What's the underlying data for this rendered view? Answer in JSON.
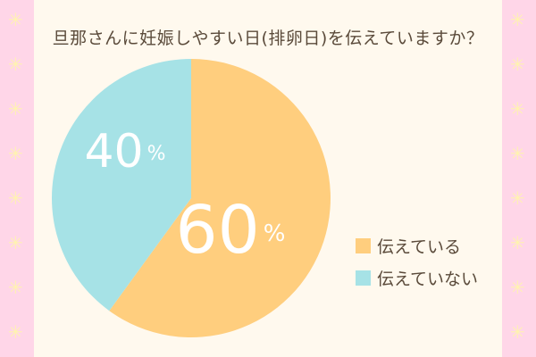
{
  "chart_data": {
    "type": "pie",
    "title": "旦那さんに妊娠しやすい日(排卵日)を伝えていますか？",
    "slices": [
      {
        "label": "伝えている",
        "value": 60,
        "display_value": "60",
        "unit": "%",
        "color": "#ffce7e"
      },
      {
        "label": "伝えていない",
        "value": 40,
        "display_value": "40",
        "unit": "%",
        "color": "#a6e2e6"
      }
    ],
    "legend_position": "right"
  },
  "colors": {
    "background": "#fff9ee",
    "side_stripes": "#ffd6e8",
    "stars": "#fff3b0",
    "text": "#5a4a3a"
  },
  "decor": {
    "side_glyph": "✳"
  }
}
